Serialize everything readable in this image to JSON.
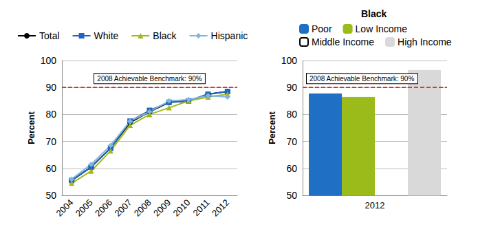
{
  "chart_data": [
    {
      "type": "line",
      "ylabel": "Percent",
      "categories": [
        "2004",
        "2005",
        "2006",
        "2007",
        "2008",
        "2009",
        "2010",
        "2011",
        "2012"
      ],
      "series": [
        {
          "name": "Total",
          "color": "#000000",
          "marker": "circle",
          "values": [
            55.5,
            60.5,
            67.5,
            77,
            81,
            84.5,
            85,
            87.5,
            88.5
          ]
        },
        {
          "name": "White",
          "color": "#1F66C1",
          "marker": "square",
          "values": [
            55.5,
            60.5,
            67.5,
            77.5,
            81.5,
            84.5,
            85,
            87.5,
            88.5
          ]
        },
        {
          "name": "Black",
          "color": "#A3B816",
          "marker": "triangle",
          "values": [
            54.5,
            59,
            66.5,
            76,
            80,
            82.5,
            85,
            86.5,
            87.5
          ]
        },
        {
          "name": "Hispanic",
          "color": "#80B4E3",
          "marker": "diamond",
          "values": [
            56,
            61.5,
            68.5,
            77.5,
            81,
            85,
            85.5,
            87,
            86.5
          ]
        }
      ],
      "ylim": [
        50,
        100
      ],
      "yticks": [
        50,
        60,
        70,
        80,
        90,
        100
      ],
      "grid": true,
      "legend": "top",
      "annotations": [
        {
          "y": 90,
          "text": "2008 Achievable Benchmark: 90%"
        }
      ]
    },
    {
      "type": "bar",
      "title": "Black",
      "ylabel": "Percent",
      "categories": [
        "2012"
      ],
      "series": [
        {
          "name": "Poor",
          "color": "#1F6FC5",
          "values": [
            87.8
          ]
        },
        {
          "name": "Low Income",
          "color": "#9BBB1A",
          "values": [
            86.5
          ]
        },
        {
          "name": "Middle Income",
          "color": "#FFFFFF",
          "values": [
            null
          ]
        },
        {
          "name": "High Income",
          "color": "#D9D9D9",
          "values": [
            96.5
          ]
        }
      ],
      "ylim": [
        50,
        100
      ],
      "yticks": [
        50,
        60,
        70,
        80,
        90,
        100
      ],
      "grid": true,
      "legend": "top",
      "annotations": [
        {
          "y": 90,
          "text": "2008 Achievable Benchmark: 90%"
        }
      ]
    }
  ]
}
